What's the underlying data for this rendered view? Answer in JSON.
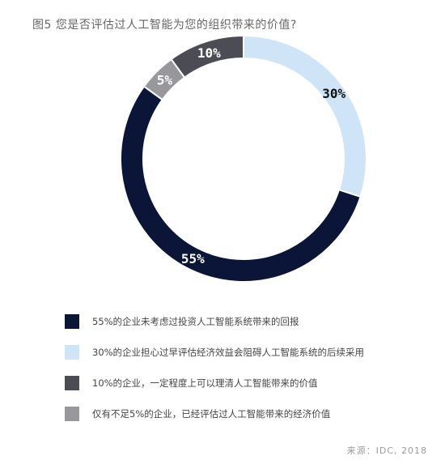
{
  "title": "图5 您是否评估过人工智能为您的组织带来的价值?",
  "source": "来源：IDC, 2018",
  "chart_data": {
    "type": "pie",
    "subtype": "donut",
    "start": "top, clockwise",
    "slices": [
      {
        "label": "30%",
        "value": 30,
        "color": "#cfe4f6",
        "label_color": "#111111",
        "legend": "30%的企业担心过早评估经济效益会阻碍人工智能系统的后续采用"
      },
      {
        "label": "55%",
        "value": 55,
        "color": "#0b1537",
        "label_color": "#ffffff",
        "legend": "55%的企业未考虑过投资人工智能系统带来的回报"
      },
      {
        "label": "5%",
        "value": 5,
        "color": "#98989c",
        "label_color": "#ffffff",
        "legend": "仅有不足5%的企业，已经评估过人工智能带来的经济价值"
      },
      {
        "label": "10%",
        "value": 10,
        "color": "#4c4d54",
        "label_color": "#ffffff",
        "legend": "10%的企业，一定程度上可以理清人工智能带来的价值"
      }
    ]
  },
  "legend": [
    {
      "text": "55%的企业未考虑过投资人工智能系统带来的回报",
      "color": "#0b1537"
    },
    {
      "text": "30%的企业担心过早评估经济效益会阻碍人工智能系统的后续采用",
      "color": "#cfe4f6"
    },
    {
      "text": "10%的企业，一定程度上可以理清人工智能带来的价值",
      "color": "#4c4d54"
    },
    {
      "text": "仅有不足5%的企业，已经评估过人工智能带来的经济价值",
      "color": "#98989c"
    }
  ]
}
